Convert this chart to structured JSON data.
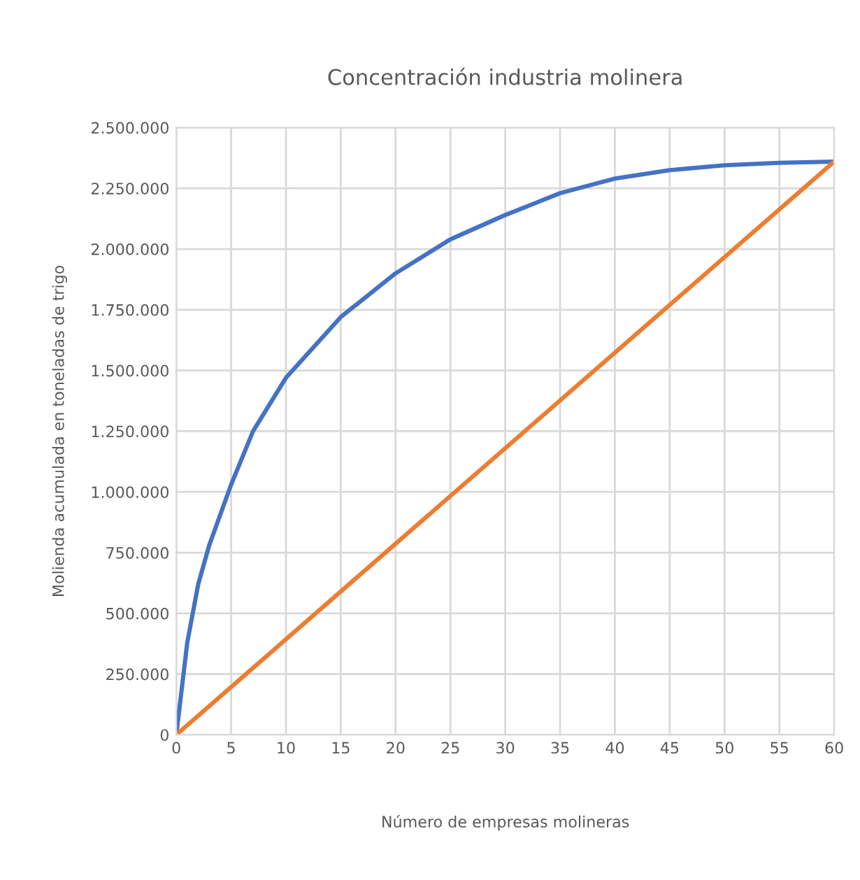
{
  "chart_data": {
    "type": "line",
    "title": "Concentración industria molinera",
    "xlabel": "Número de empresas molineras",
    "ylabel": "Molienda acumulada en toneladas de trigo",
    "series": [
      {
        "color": "#4472c4",
        "x": [
          0,
          1,
          2,
          3,
          5,
          7,
          10,
          15,
          20,
          25,
          30,
          35,
          40,
          45,
          50,
          55,
          60
        ],
        "values": [
          0,
          380000,
          620000,
          780000,
          1030000,
          1250000,
          1470000,
          1720000,
          1900000,
          2040000,
          2140000,
          2230000,
          2290000,
          2325000,
          2345000,
          2355000,
          2360000
        ]
      },
      {
        "color": "#ed7d31",
        "x": [
          0,
          60
        ],
        "values": [
          0,
          2360000
        ]
      }
    ],
    "xlim": [
      0,
      60
    ],
    "xticks": [
      0,
      5,
      10,
      15,
      20,
      25,
      30,
      35,
      40,
      45,
      50,
      55,
      60
    ],
    "ylim": [
      0,
      2500000
    ],
    "yticks": [
      0,
      {
        "value": 250000,
        "label": "250.000"
      },
      {
        "value": 500000,
        "label": "500.000"
      },
      {
        "value": 750000,
        "label": "750.000"
      },
      {
        "value": 1000000,
        "label": "1.000.000"
      },
      {
        "value": 1250000,
        "label": "1.250.000"
      },
      {
        "value": 1500000,
        "label": "1.500.000"
      },
      {
        "value": 1750000,
        "label": "1.750.000"
      },
      {
        "value": 2000000,
        "label": "2.000.000"
      },
      {
        "value": 2250000,
        "label": "2.250.000"
      },
      {
        "value": 2500000,
        "label": "2.500.000"
      }
    ],
    "grid": true,
    "marker": "none",
    "line_style": "solid"
  }
}
